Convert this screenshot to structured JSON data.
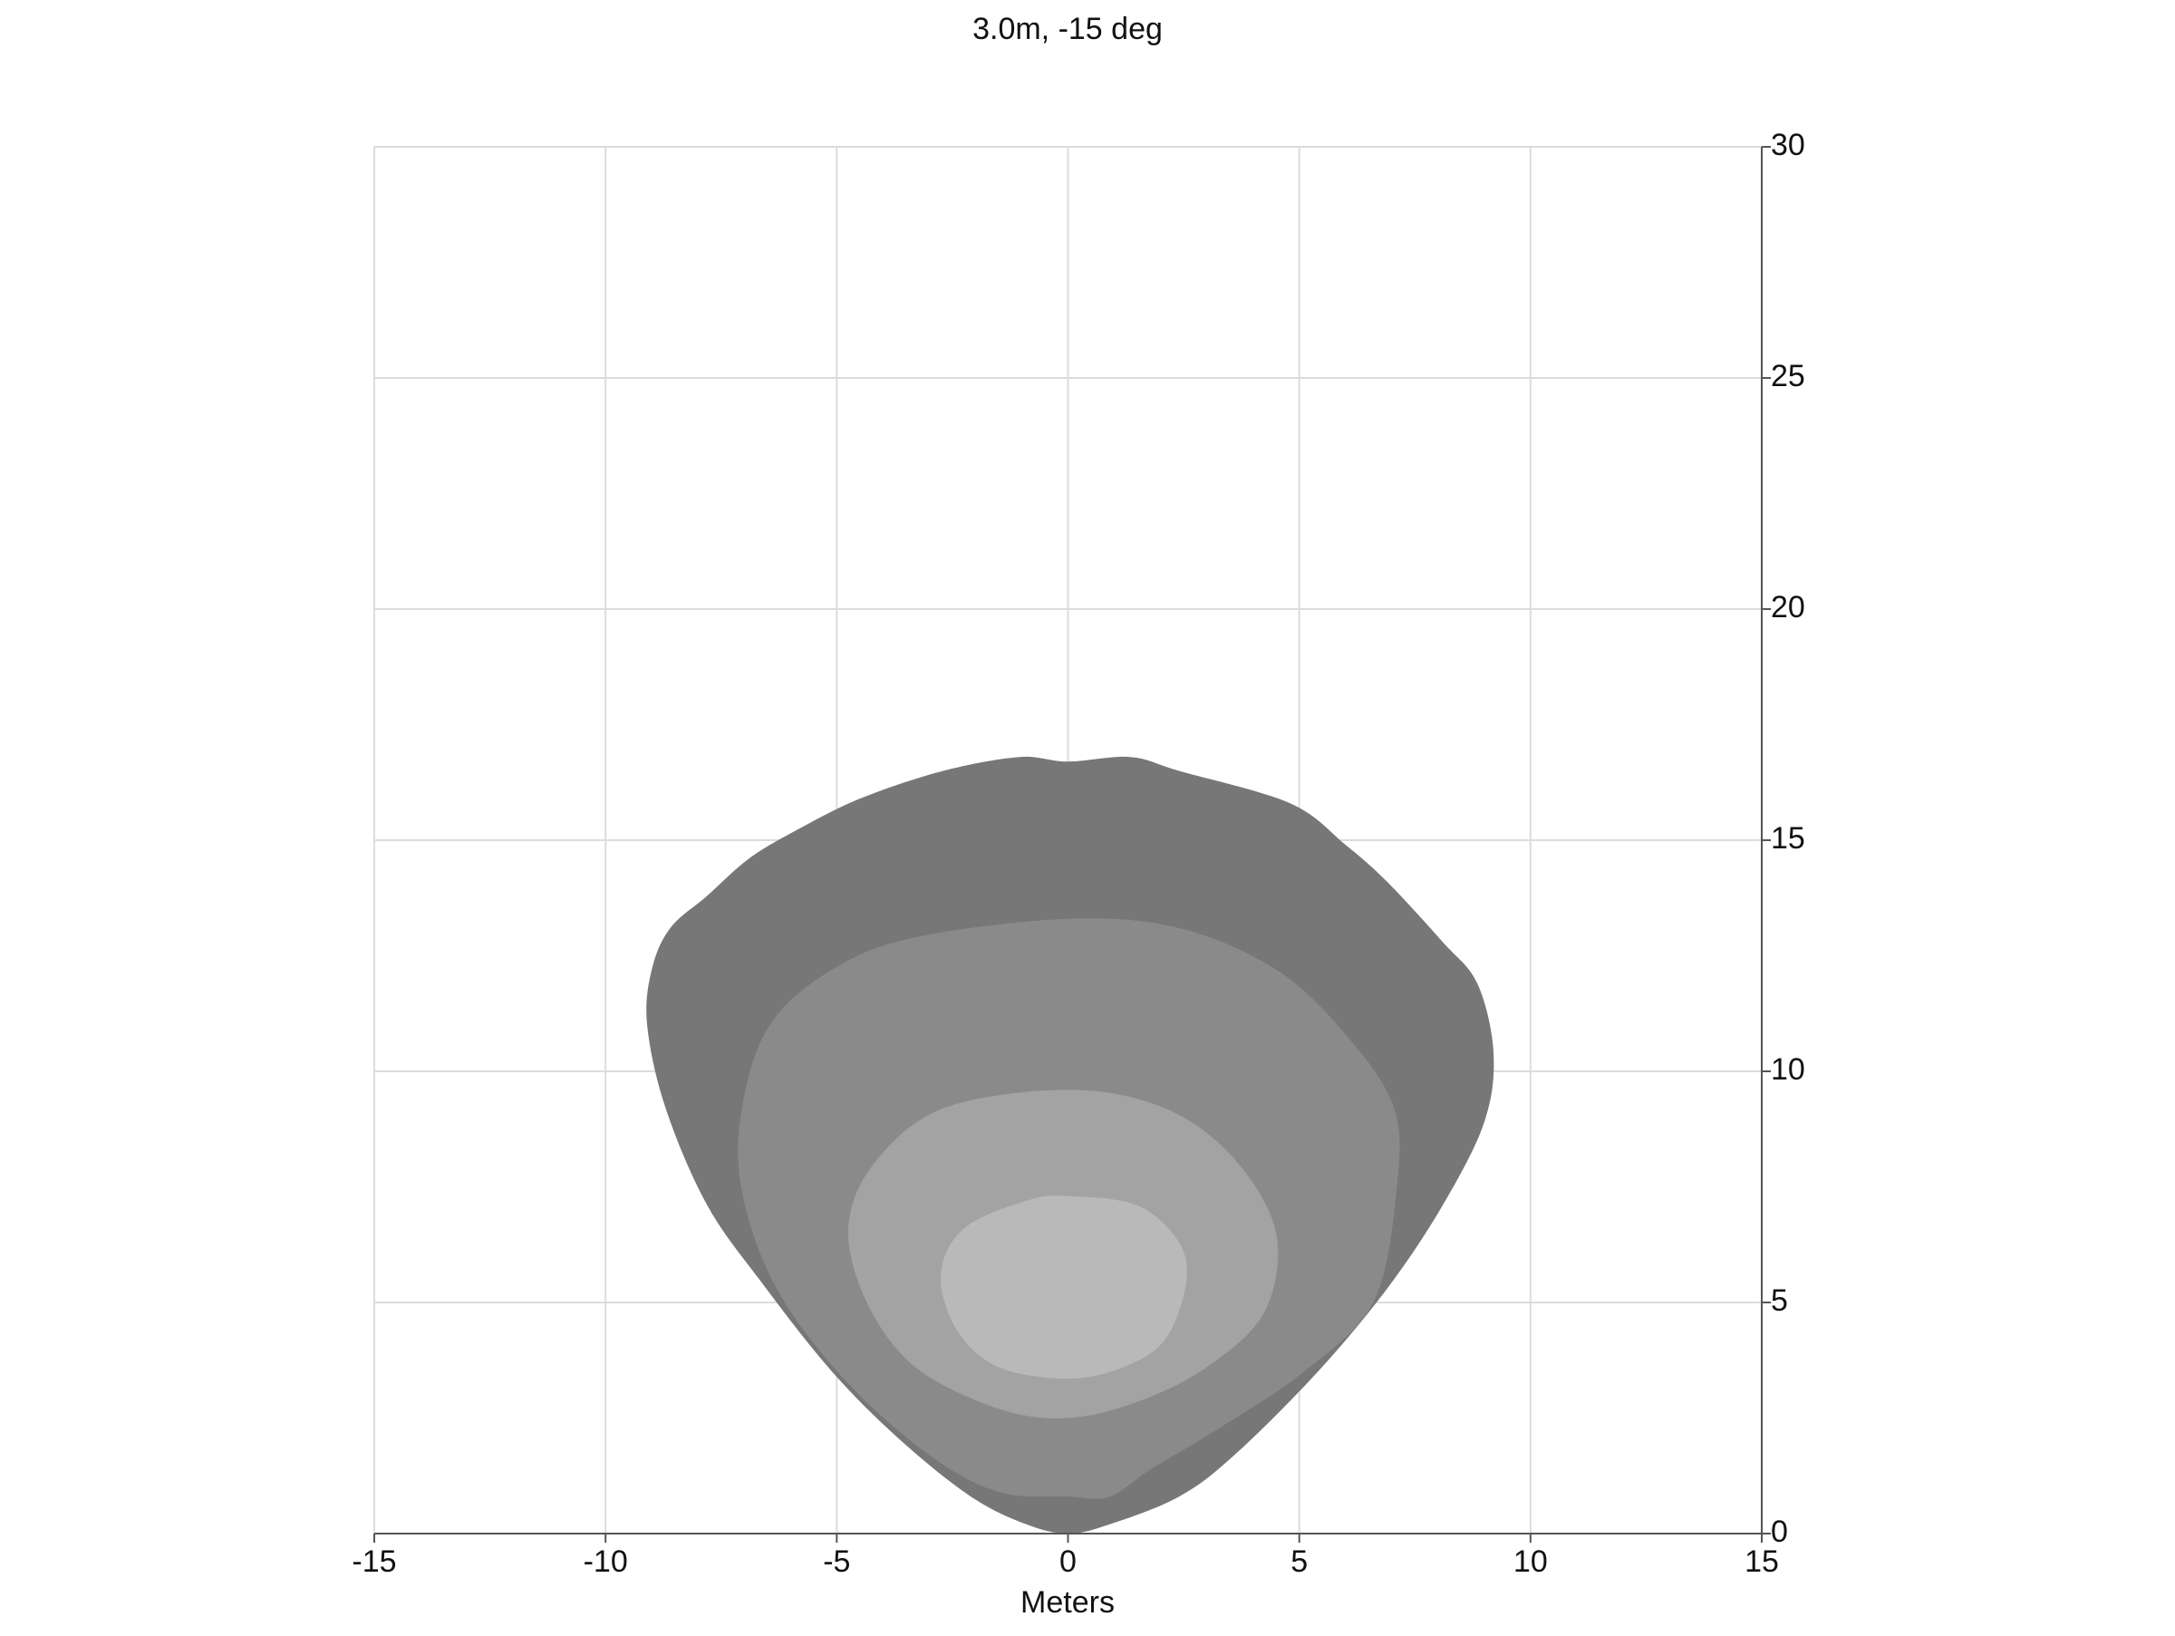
{
  "chart_data": {
    "type": "contour",
    "title": "3.0m, -15 deg",
    "x_label": "Meters",
    "xlim": [
      -15,
      15
    ],
    "xticks": [
      -15,
      -10,
      -5,
      0,
      5,
      10,
      15
    ],
    "ylim": [
      0,
      30
    ],
    "yticks": [
      0,
      5,
      10,
      15,
      20,
      25,
      30
    ],
    "grid": true,
    "series": [
      {
        "color": "#777777",
        "x": [
          0,
          -0.9,
          -2.1,
          -3.6,
          -5.1,
          -6.6,
          -7.8,
          -8.7,
          -9.1,
          -9.0,
          -8.6,
          -7.8,
          -6.9,
          -5.9,
          -4.5,
          -2.7,
          -1.05,
          0,
          1.35,
          2.4,
          4.8,
          6.0,
          6.9,
          8.1,
          8.85,
          9.2,
          9.0,
          8.1,
          6.9,
          5.4,
          3.6,
          2.4,
          0.9
        ],
        "y": [
          0,
          0.2,
          0.8,
          2.0,
          3.5,
          5.4,
          7.1,
          9.2,
          11.0,
          12.2,
          13.1,
          13.8,
          14.6,
          15.2,
          15.9,
          16.5,
          16.8,
          16.7,
          16.8,
          16.5,
          15.8,
          14.9,
          14.1,
          12.8,
          11.9,
          10.4,
          8.9,
          7.1,
          5.3,
          3.5,
          1.7,
          0.8,
          0.2
        ]
      },
      {
        "color": "#8a8a8a",
        "x": [
          0,
          -1.5,
          -3.0,
          -4.8,
          -6.3,
          -7.05,
          -7.05,
          -6.45,
          -5.1,
          -3.3,
          0,
          2.4,
          4.5,
          6.0,
          7.05,
          7.1,
          6.6,
          5.1,
          3.3,
          1.8,
          0.9
        ],
        "y": [
          0.8,
          0.9,
          1.7,
          3.3,
          5.3,
          7.4,
          9.2,
          11.0,
          12.2,
          12.9,
          13.3,
          13.1,
          12.2,
          10.8,
          9.2,
          7.4,
          5.0,
          3.5,
          2.3,
          1.4,
          0.8
        ]
      },
      {
        "color": "#a3a3a3",
        "x": [
          0,
          -1.5,
          -3.3,
          -4.35,
          -4.75,
          -4.2,
          -2.7,
          0,
          2.1,
          3.6,
          4.5,
          4.25,
          3.0,
          1.5
        ],
        "y": [
          2.5,
          2.7,
          3.6,
          5.0,
          6.6,
          8.0,
          9.2,
          9.6,
          9.2,
          8.1,
          6.5,
          4.8,
          3.6,
          2.85
        ]
      },
      {
        "color": "#b9b9b9",
        "x": [
          0,
          -1.5,
          -2.4,
          -2.75,
          -2.25,
          -0.9,
          0,
          1.5,
          2.4,
          2.55,
          2.1,
          1.2
        ],
        "y": [
          3.35,
          3.6,
          4.4,
          5.6,
          6.6,
          7.2,
          7.3,
          7.1,
          6.3,
          5.4,
          4.2,
          3.6
        ]
      }
    ]
  }
}
